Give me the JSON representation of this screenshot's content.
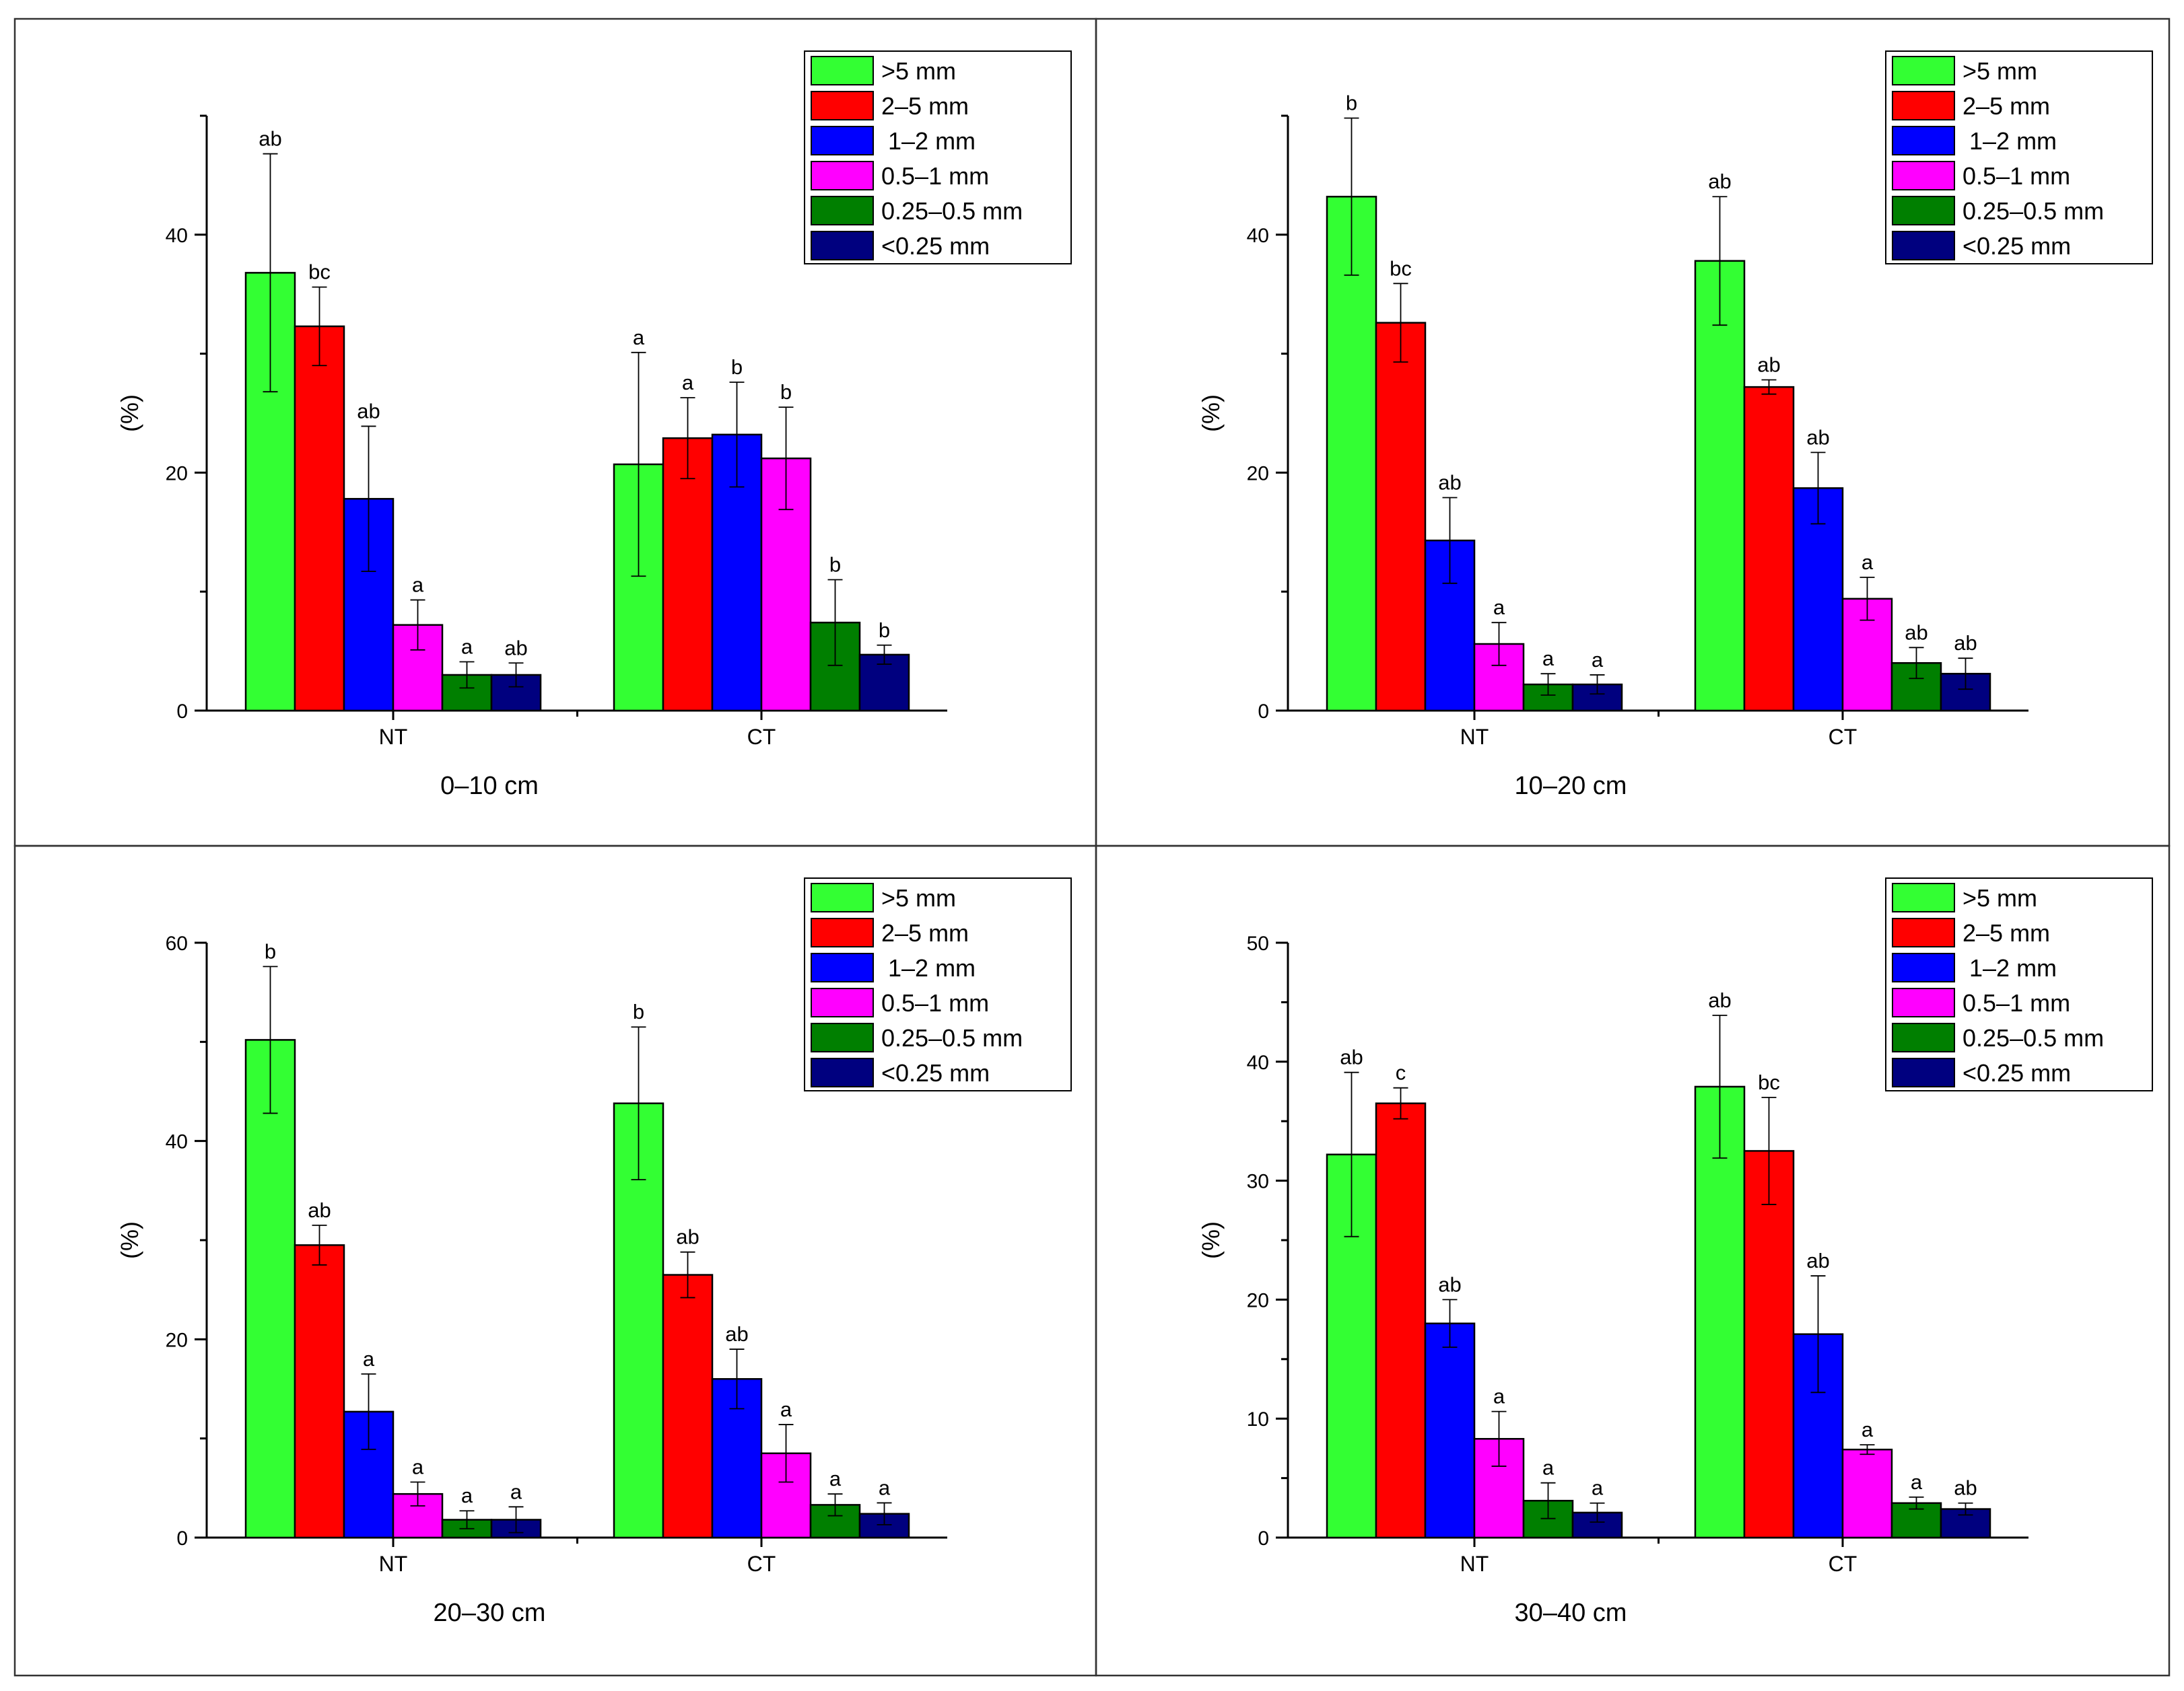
{
  "chart_data": [
    {
      "type": "bar",
      "xlabel": "0–10 cm",
      "ylabel": "(%)",
      "ylim": [
        0,
        50
      ],
      "yticks": [
        0,
        20,
        40
      ],
      "categories": [
        "NT",
        "CT"
      ],
      "series": [
        {
          "name": ">5 mm",
          "color": "#33ff33",
          "values": [
            36.8,
            20.7
          ],
          "errors": [
            10.0,
            9.4
          ],
          "labels": [
            "ab",
            "a"
          ]
        },
        {
          "name": "2–5 mm",
          "color": "#ff0000",
          "values": [
            32.3,
            22.9
          ],
          "errors": [
            3.3,
            3.4
          ],
          "labels": [
            "bc",
            "a"
          ]
        },
        {
          "name": " 1–2 mm",
          "color": "#0000ff",
          "values": [
            17.8,
            23.2
          ],
          "errors": [
            6.1,
            4.4
          ],
          "labels": [
            "ab",
            "b"
          ]
        },
        {
          "name": "0.5–1 mm",
          "color": "#ff00ff",
          "values": [
            7.2,
            21.2
          ],
          "errors": [
            2.1,
            4.3
          ],
          "labels": [
            "a",
            "b"
          ]
        },
        {
          "name": "0.25–0.5 mm",
          "color": "#007f00",
          "values": [
            3.0,
            7.4
          ],
          "errors": [
            1.1,
            3.6
          ],
          "labels": [
            "a",
            "b"
          ]
        },
        {
          "name": "<0.25 mm",
          "color": "#00007f",
          "values": [
            3.0,
            4.7
          ],
          "errors": [
            1.0,
            0.8
          ],
          "labels": [
            "ab",
            "b"
          ]
        }
      ]
    },
    {
      "type": "bar",
      "xlabel": "10–20 cm",
      "ylabel": "(%)",
      "ylim": [
        0,
        50
      ],
      "yticks": [
        0,
        20,
        40
      ],
      "categories": [
        "NT",
        "CT"
      ],
      "series": [
        {
          "name": ">5 mm",
          "color": "#33ff33",
          "values": [
            43.2,
            37.8
          ],
          "errors": [
            6.6,
            5.4
          ],
          "labels": [
            "b",
            "ab"
          ]
        },
        {
          "name": "2–5 mm",
          "color": "#ff0000",
          "values": [
            32.6,
            27.2
          ],
          "errors": [
            3.3,
            0.6
          ],
          "labels": [
            "bc",
            "ab"
          ]
        },
        {
          "name": " 1–2 mm",
          "color": "#0000ff",
          "values": [
            14.3,
            18.7
          ],
          "errors": [
            3.6,
            3.0
          ],
          "labels": [
            "ab",
            "ab"
          ]
        },
        {
          "name": "0.5–1 mm",
          "color": "#ff00ff",
          "values": [
            5.6,
            9.4
          ],
          "errors": [
            1.8,
            1.8
          ],
          "labels": [
            "a",
            "a"
          ]
        },
        {
          "name": "0.25–0.5 mm",
          "color": "#007f00",
          "values": [
            2.2,
            4.0
          ],
          "errors": [
            0.9,
            1.3
          ],
          "labels": [
            "a",
            "ab"
          ]
        },
        {
          "name": "<0.25 mm",
          "color": "#00007f",
          "values": [
            2.2,
            3.1
          ],
          "errors": [
            0.8,
            1.3
          ],
          "labels": [
            "a",
            "ab"
          ]
        }
      ]
    },
    {
      "type": "bar",
      "xlabel": "20–30 cm",
      "ylabel": "(%)",
      "ylim": [
        0,
        60
      ],
      "yticks": [
        0,
        20,
        40,
        60
      ],
      "categories": [
        "NT",
        "CT"
      ],
      "series": [
        {
          "name": ">5 mm",
          "color": "#33ff33",
          "values": [
            50.2,
            43.8
          ],
          "errors": [
            7.4,
            7.7
          ],
          "labels": [
            "b",
            "b"
          ]
        },
        {
          "name": "2–5 mm",
          "color": "#ff0000",
          "values": [
            29.5,
            26.5
          ],
          "errors": [
            2.0,
            2.3
          ],
          "labels": [
            "ab",
            "ab"
          ]
        },
        {
          "name": " 1–2 mm",
          "color": "#0000ff",
          "values": [
            12.7,
            16.0
          ],
          "errors": [
            3.8,
            3.0
          ],
          "labels": [
            "a",
            "ab"
          ]
        },
        {
          "name": "0.5–1 mm",
          "color": "#ff00ff",
          "values": [
            4.4,
            8.5
          ],
          "errors": [
            1.2,
            2.9
          ],
          "labels": [
            "a",
            "a"
          ]
        },
        {
          "name": "0.25–0.5 mm",
          "color": "#007f00",
          "values": [
            1.8,
            3.3
          ],
          "errors": [
            0.9,
            1.1
          ],
          "labels": [
            "a",
            "a"
          ]
        },
        {
          "name": "<0.25 mm",
          "color": "#00007f",
          "values": [
            1.8,
            2.4
          ],
          "errors": [
            1.3,
            1.1
          ],
          "labels": [
            "a",
            "a"
          ]
        }
      ]
    },
    {
      "type": "bar",
      "xlabel": "30–40 cm",
      "ylabel": "(%)",
      "ylim": [
        0,
        50
      ],
      "yticks": [
        0,
        10,
        20,
        30,
        40,
        50
      ],
      "categories": [
        "NT",
        "CT"
      ],
      "series": [
        {
          "name": ">5 mm",
          "color": "#33ff33",
          "values": [
            32.2,
            37.9
          ],
          "errors": [
            6.9,
            6.0
          ],
          "labels": [
            "ab",
            "ab"
          ]
        },
        {
          "name": "2–5 mm",
          "color": "#ff0000",
          "values": [
            36.5,
            32.5
          ],
          "errors": [
            1.3,
            4.5
          ],
          "labels": [
            "c",
            "bc"
          ]
        },
        {
          "name": " 1–2 mm",
          "color": "#0000ff",
          "values": [
            18.0,
            17.1
          ],
          "errors": [
            2.0,
            4.9
          ],
          "labels": [
            "ab",
            "ab"
          ]
        },
        {
          "name": "0.5–1 mm",
          "color": "#ff00ff",
          "values": [
            8.3,
            7.4
          ],
          "errors": [
            2.3,
            0.4
          ],
          "labels": [
            "a",
            "a"
          ]
        },
        {
          "name": "0.25–0.5 mm",
          "color": "#007f00",
          "values": [
            3.1,
            2.9
          ],
          "errors": [
            1.5,
            0.5
          ],
          "labels": [
            "a",
            "a"
          ]
        },
        {
          "name": "<0.25 mm",
          "color": "#00007f",
          "values": [
            2.1,
            2.4
          ],
          "errors": [
            0.8,
            0.5
          ],
          "labels": [
            "a",
            "ab"
          ]
        }
      ]
    }
  ]
}
